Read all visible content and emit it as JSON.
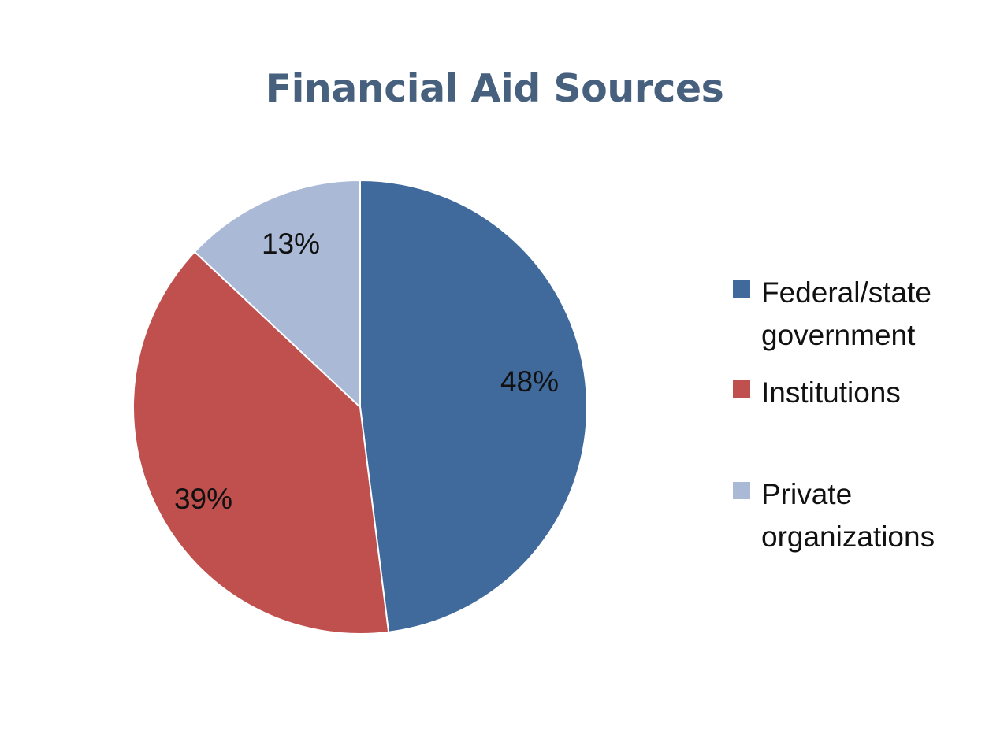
{
  "chart_data": {
    "type": "pie",
    "title": "Financial Aid Sources",
    "slices": [
      {
        "label": "Federal/state government",
        "value": 48,
        "value_label": "48%",
        "color": "#416a9c"
      },
      {
        "label": "Institutions",
        "value": 39,
        "value_label": "39%",
        "color": "#c0504d"
      },
      {
        "label": "Private organizations",
        "value": 13,
        "value_label": "13%",
        "color": "#aab9d6"
      }
    ],
    "legend": {
      "placement": "right",
      "items": [
        {
          "text": "Federal/state\ngovernment",
          "color": "#416a9c"
        },
        {
          "text": "Institutions",
          "color": "#c0504d"
        },
        {
          "text": "Private\norganizations",
          "color": "#aab9d6"
        }
      ]
    }
  }
}
